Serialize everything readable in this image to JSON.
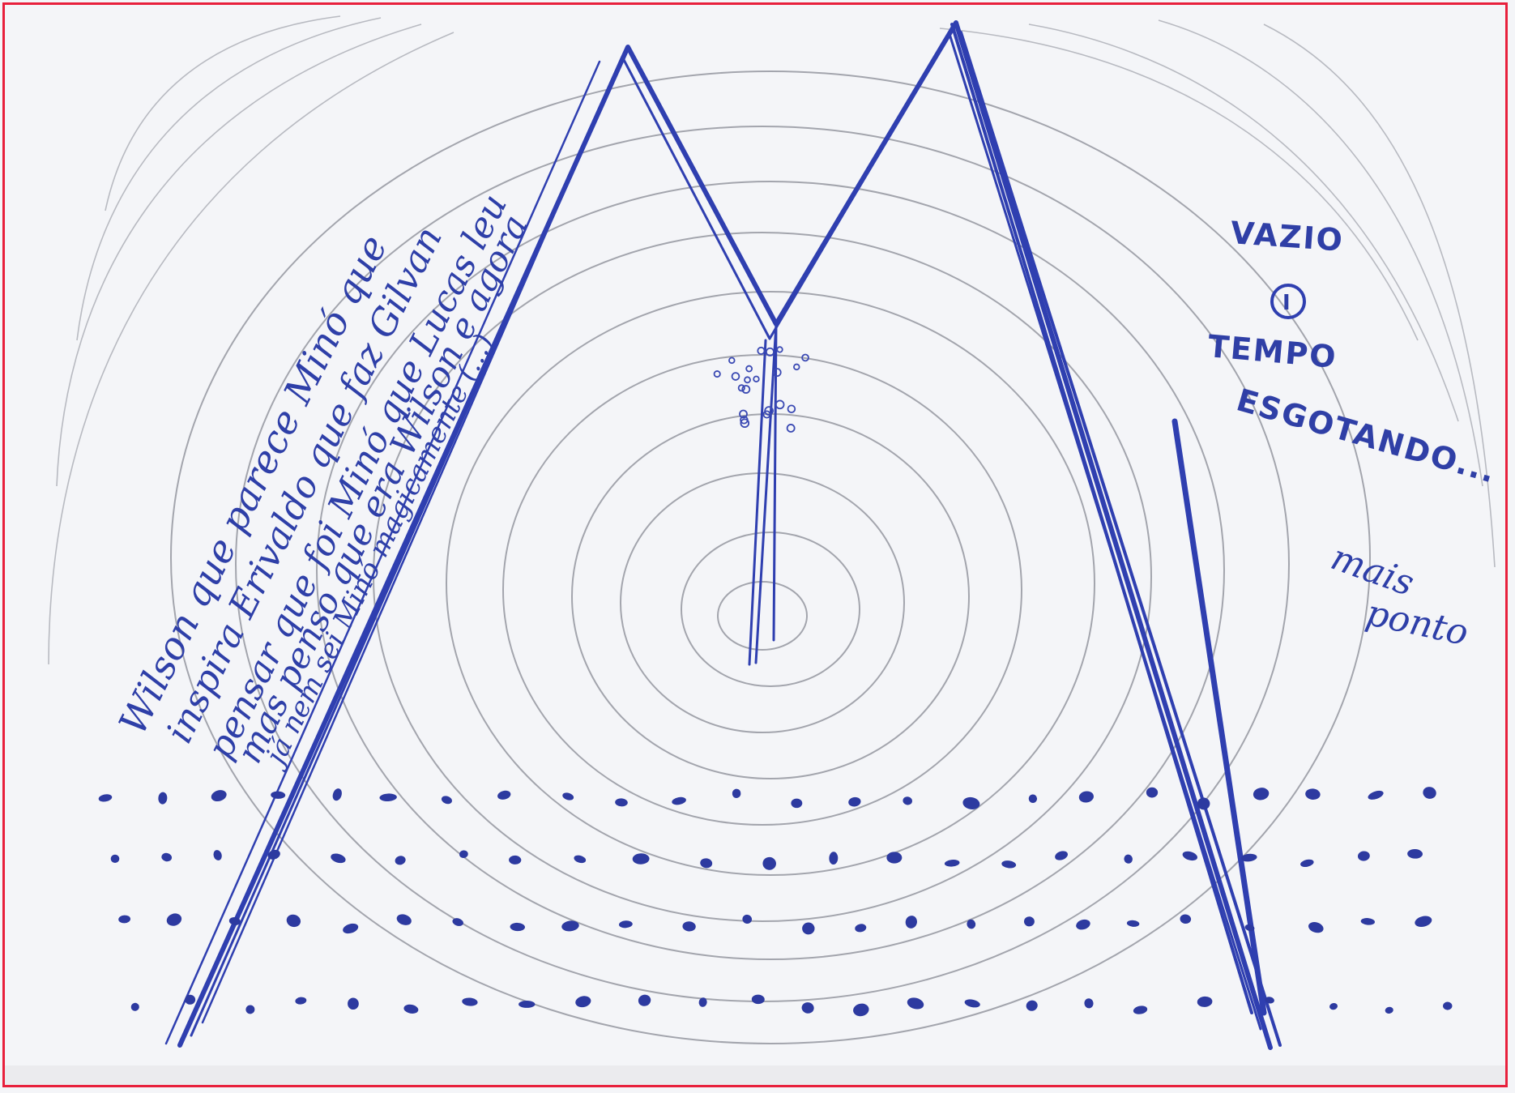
{
  "colors": {
    "pen_blue": "#2f3fb0",
    "pencil_gray": "#9c9ea6",
    "frame_red": "#e8203c",
    "paper": "#f4f5f8"
  },
  "handwriting": {
    "line1": "Wilson que parece Minó que",
    "line2": "inspira Erivaldo que faz Gilvan",
    "line3": "pensar que foi Minó que Lucas leu",
    "line4": "mas penso que era Wilson e agora",
    "line5": "já nem sei Minó magicamente (...)"
  },
  "notes": {
    "word1": "VAZIO",
    "circled_mark": "I",
    "word2": "TEMPO",
    "word3": "ESGOTANDO...",
    "word4": "mais",
    "word5": "ponto"
  }
}
